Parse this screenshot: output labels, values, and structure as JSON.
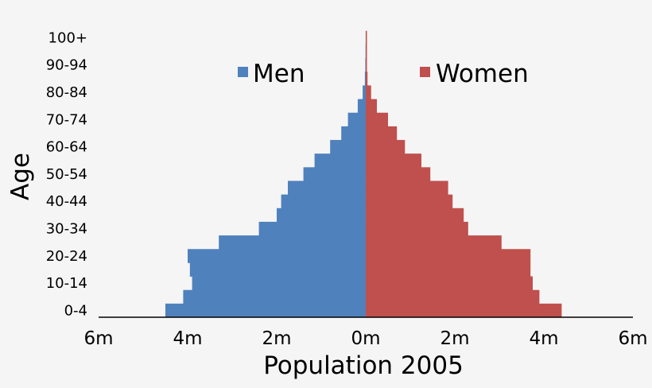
{
  "chart_data": {
    "type": "bar",
    "orientation": "horizontal-pyramid",
    "ylabel": "Age",
    "xlabel": "Population 2005",
    "age_groups": [
      "0-4",
      "5-9",
      "10-14",
      "15-19",
      "20-24",
      "25-29",
      "30-34",
      "35-39",
      "40-44",
      "45-49",
      "50-54",
      "55-59",
      "60-64",
      "65-69",
      "70-74",
      "75-79",
      "80-84",
      "85-89",
      "90-94",
      "95-99",
      "100+"
    ],
    "y_tick_labels": [
      "0-4",
      "10-14",
      "20-24",
      "30-34",
      "40-44",
      "50-54",
      "60-64",
      "70-74",
      "80-84",
      "90-94",
      "100+"
    ],
    "x_tick_labels": [
      "6m",
      "4m",
      "2m",
      "0m",
      "2m",
      "4m",
      "6m"
    ],
    "xlim": [
      -6,
      6
    ],
    "x_unit": "millions",
    "series": [
      {
        "name": "Men",
        "color": "#4f81bd",
        "values": [
          4.5,
          4.1,
          3.9,
          3.95,
          4.0,
          3.3,
          2.4,
          2.0,
          1.9,
          1.75,
          1.4,
          1.15,
          0.8,
          0.55,
          0.4,
          0.18,
          0.07,
          0.02,
          0.01,
          0.005,
          0.002
        ]
      },
      {
        "name": "Women",
        "color": "#c0504d",
        "values": [
          4.4,
          3.9,
          3.75,
          3.7,
          3.7,
          3.05,
          2.3,
          2.2,
          1.95,
          1.85,
          1.45,
          1.25,
          0.88,
          0.7,
          0.5,
          0.25,
          0.12,
          0.04,
          0.02,
          0.01,
          0.005
        ]
      }
    ],
    "grid": false,
    "legend": "top, inline"
  }
}
